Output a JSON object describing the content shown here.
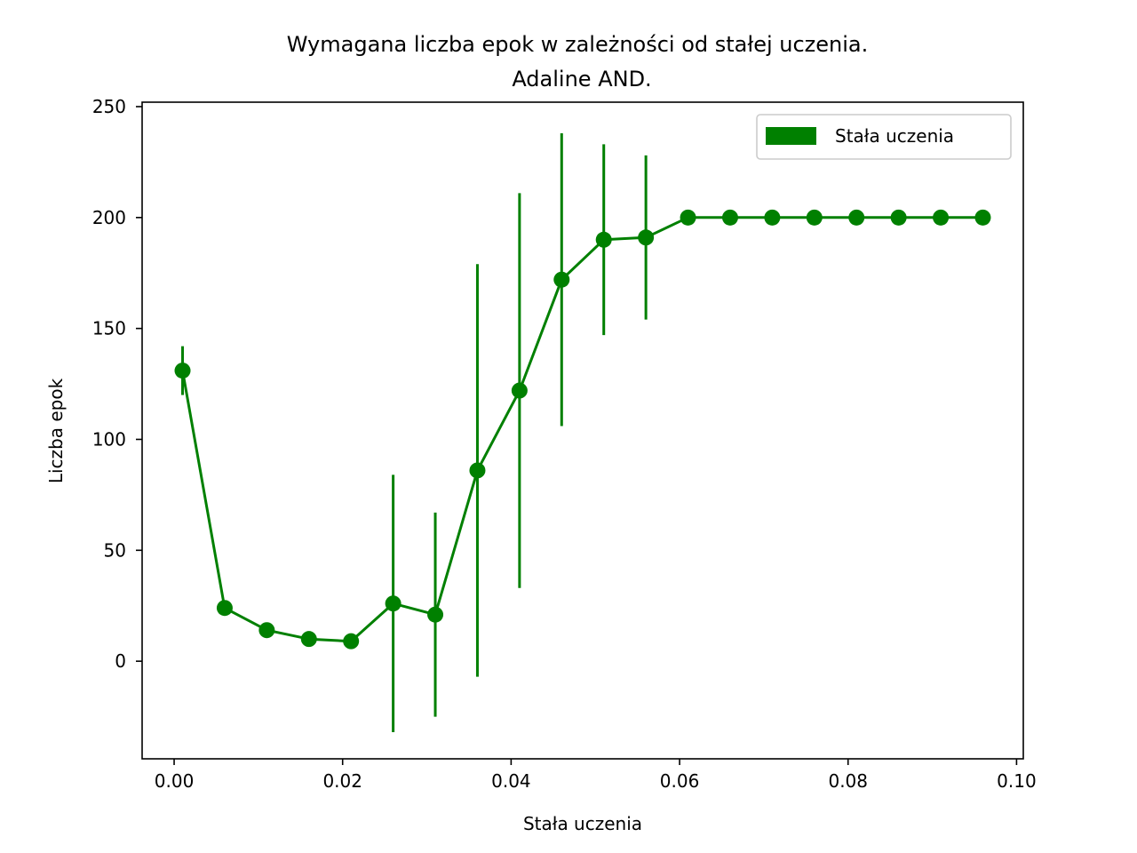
{
  "chart_data": {
    "type": "line",
    "title": "Wymagana liczba epok w zależności od stałej uczenia.",
    "subtitle": "Adaline AND.",
    "xlabel": "Stała uczenia",
    "ylabel": "Liczba epok",
    "xlim": [
      -0.0038,
      0.1008
    ],
    "ylim": [
      -44,
      252
    ],
    "xticks": [
      0.0,
      0.02,
      0.04,
      0.06,
      0.08,
      0.1
    ],
    "xtick_labels": [
      "0.00",
      "0.02",
      "0.04",
      "0.06",
      "0.08",
      "0.10"
    ],
    "yticks": [
      0,
      50,
      100,
      150,
      200,
      250
    ],
    "ytick_labels": [
      "0",
      "50",
      "100",
      "150",
      "200",
      "250"
    ],
    "grid": false,
    "legend_position": "top-right",
    "series": [
      {
        "name": "Stała uczenia",
        "color": "#008000",
        "x": [
          0.001,
          0.006,
          0.011,
          0.016,
          0.021,
          0.026,
          0.031,
          0.036,
          0.041,
          0.046,
          0.051,
          0.056,
          0.061,
          0.066,
          0.071,
          0.076,
          0.081,
          0.086,
          0.091,
          0.096
        ],
        "y": [
          131,
          24,
          14,
          10,
          9,
          26,
          21,
          86,
          122,
          172,
          190,
          191,
          200,
          200,
          200,
          200,
          200,
          200,
          200,
          200
        ],
        "error": [
          11,
          0,
          0,
          0,
          0,
          58,
          46,
          93,
          89,
          66,
          43,
          37,
          0,
          0,
          0,
          0,
          0,
          0,
          0,
          0
        ]
      }
    ]
  }
}
